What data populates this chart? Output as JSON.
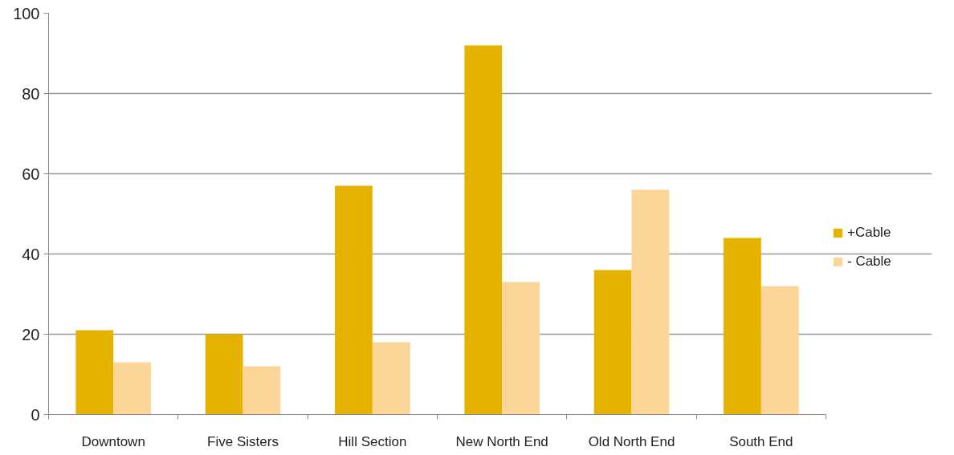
{
  "chart_data": {
    "type": "bar",
    "categories": [
      "Downtown",
      "Five Sisters",
      "Hill Section",
      "New North End",
      "Old North End",
      "South End"
    ],
    "series": [
      {
        "name": "+Cable",
        "color": "#e5b200",
        "values": [
          21,
          20,
          57,
          92,
          36,
          44
        ]
      },
      {
        "name": "- Cable",
        "color": "#fcd598",
        "values": [
          13,
          12,
          18,
          33,
          56,
          32
        ]
      }
    ],
    "ylim": [
      0,
      100
    ],
    "yticks": [
      0,
      20,
      40,
      60,
      80,
      100
    ],
    "grid": "y",
    "legend": "right"
  }
}
